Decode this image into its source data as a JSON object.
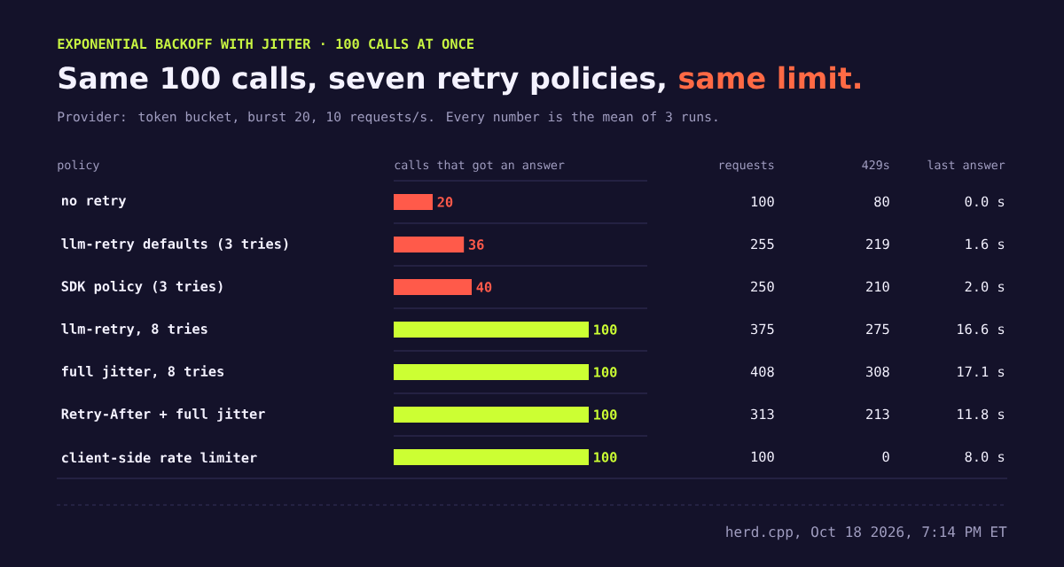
{
  "chart_data": [
    {
      "type": "bar",
      "orientation": "horizontal",
      "title": "Same 100 calls, seven retry policies, **same limit.**",
      "subtitle": "Provider: token bucket, burst 20, 10 requests/s. Every number is the mean of 3 runs.",
      "ylabel": "policy",
      "xlabel": "calls that got an answer",
      "categories": [
        "no retry",
        "llm-retry defaults (3 tries)",
        "SDK policy (3 tries)",
        "llm-retry, 8 tries",
        "full jitter, 8 tries",
        "Retry-After + full jitter",
        "client-side rate limiter"
      ],
      "values": [
        20,
        36,
        40,
        100,
        100,
        100,
        100
      ],
      "colors": [
        "#ff5a4a",
        "#ff5a4a",
        "#ff5a4a",
        "#ccff33",
        "#ccff33",
        "#ccff33",
        "#ccff33"
      ],
      "data_labels": true,
      "grid": "y",
      "annotations": [
        "EXPONENTIAL BACKOFF WITH JITTER · 100 CALLS AT ONCE",
        "herd.cpp, Oct 18 2026, 7:14 PM ET"
      ]
    },
    {
      "type": "other",
      "title": "requests",
      "annotations": [
        "100",
        "255",
        "250",
        "375",
        "408",
        "313",
        "100"
      ]
    },
    {
      "type": "other",
      "title": "429s",
      "annotations": [
        "80",
        "219",
        "210",
        "275",
        "308",
        "213",
        "0"
      ]
    },
    {
      "type": "other",
      "title": "last answer",
      "annotations": [
        "0.0 s",
        "1.6 s",
        "2.0 s",
        "16.6 s",
        "17.1 s",
        "11.8 s",
        "8.0 s"
      ]
    }
  ]
}
